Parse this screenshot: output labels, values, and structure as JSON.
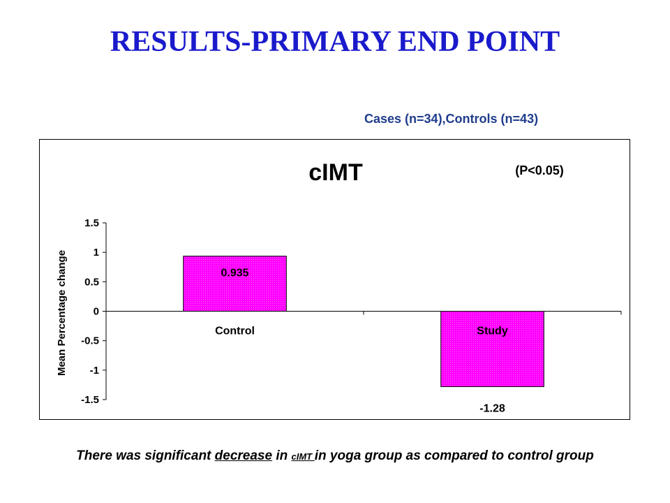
{
  "slide": {
    "title": "RESULTS-PRIMARY END POINT",
    "subtitle": "Cases (n=34),Controls (n=43)",
    "footer": {
      "part1": "There was significant ",
      "emph": "decrease",
      "part2": " in ",
      "term": "cIMT ",
      "part3": "in yoga group as compared to control group"
    }
  },
  "chart_data": {
    "type": "bar",
    "title": "cIMT",
    "annotation": "(P<0.05)",
    "ylabel": "Mean Percentage change",
    "xlabel": "",
    "categories": [
      "Control",
      "Study"
    ],
    "values": [
      0.935,
      -1.28
    ],
    "data_labels": [
      "0.935",
      "-1.28"
    ],
    "ylim": [
      -1.5,
      1.5
    ],
    "yticks": [
      1.5,
      1,
      0.5,
      0,
      -0.5,
      -1,
      -1.5
    ],
    "ytick_labels": [
      "1.5",
      "1",
      "0.5",
      "0",
      "-0.5",
      "-1",
      "-1.5"
    ],
    "bar_color": "#ff00ff",
    "grid": false,
    "legend": "none"
  }
}
